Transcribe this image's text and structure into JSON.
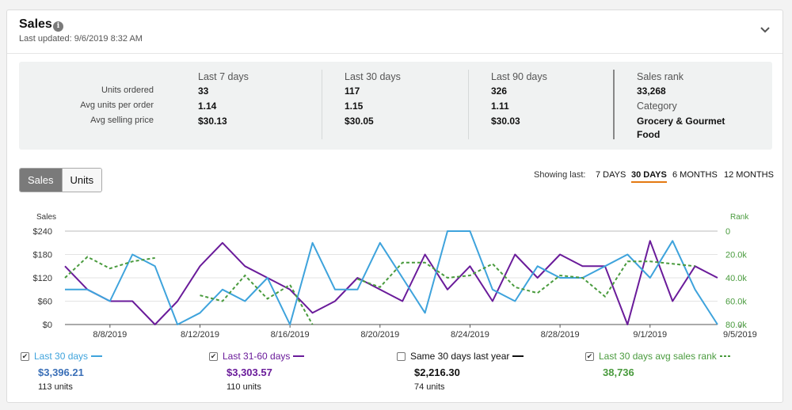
{
  "header": {
    "title": "Sales",
    "info_icon": "i",
    "updated": "Last updated: 9/6/2019 8:32 AM"
  },
  "metrics": {
    "row_labels": [
      "Units ordered",
      "Avg units per order",
      "Avg selling price"
    ],
    "periods": [
      {
        "title": "Last 7 days",
        "values": [
          "33",
          "1.14",
          "$30.13"
        ]
      },
      {
        "title": "Last 30 days",
        "values": [
          "117",
          "1.15",
          "$30.05"
        ]
      },
      {
        "title": "Last 90 days",
        "values": [
          "326",
          "1.11",
          "$30.03"
        ]
      }
    ],
    "rank_label": "Sales rank",
    "rank_value": "33,268",
    "category_label": "Category",
    "category_value": "Grocery & Gourmet Food"
  },
  "toggle": {
    "sales": "Sales",
    "units": "Units"
  },
  "showing": {
    "label": "Showing last:",
    "options": [
      "7 DAYS",
      "30 DAYS",
      "6 MONTHS",
      "12 MONTHS"
    ],
    "selected": "30 DAYS"
  },
  "colors": {
    "last30": "#3ea3dc",
    "last31_60": "#6a1b9a",
    "last_year": "#111111",
    "rank": "#4a9b3e",
    "accent": "#e47911"
  },
  "chart_data": {
    "type": "line",
    "left_axis": {
      "label": "Sales",
      "ticks": [
        "$0",
        "$60",
        "$120",
        "$180",
        "$240"
      ],
      "range": [
        0,
        240
      ]
    },
    "right_axis": {
      "label": "Rank",
      "ticks": [
        "0",
        "20.0k",
        "40.0k",
        "60.0k",
        "80.0k"
      ],
      "range": [
        0,
        80000
      ],
      "inverted": true
    },
    "x_labels": [
      "8/8/2019",
      "8/12/2019",
      "8/16/2019",
      "8/20/2019",
      "8/24/2019",
      "8/28/2019",
      "9/1/2019",
      "9/5/2019"
    ],
    "x_label_index": [
      2,
      6,
      10,
      14,
      18,
      22,
      26,
      30
    ],
    "series": [
      {
        "name": "Last 30 days",
        "axis": "left",
        "style": "solid",
        "values": [
          90,
          90,
          60,
          180,
          150,
          0,
          30,
          90,
          60,
          120,
          0,
          210,
          90,
          90,
          210,
          120,
          30,
          240,
          240,
          90,
          60,
          150,
          120,
          120,
          150,
          180,
          120,
          215,
          90,
          0
        ]
      },
      {
        "name": "Last 31-60 days",
        "axis": "left",
        "style": "solid",
        "values": [
          150,
          90,
          60,
          60,
          0,
          60,
          150,
          210,
          150,
          120,
          90,
          30,
          60,
          120,
          90,
          60,
          180,
          90,
          150,
          60,
          180,
          120,
          180,
          150,
          150,
          0,
          215,
          60,
          150,
          120
        ]
      },
      {
        "name": "Last 30 days avg sales rank",
        "axis": "right",
        "style": "dashed",
        "segments": [
          {
            "start": 0,
            "values": [
              40000,
              22000,
              32000,
              26000,
              23000
            ]
          },
          {
            "start": 6,
            "values": [
              55000,
              60000,
              38000,
              58000,
              46000,
              80000
            ]
          },
          {
            "start": 13,
            "values": [
              41000,
              48000,
              27000,
              27000,
              40000,
              38000,
              28000,
              48000,
              53000,
              38000,
              40000,
              56000,
              26000,
              26000,
              28000,
              30000
            ]
          }
        ]
      }
    ]
  },
  "legend": [
    {
      "label": "Last 30 days",
      "checked": true,
      "value": "$3,396.21",
      "units": "113 units",
      "color": "#3ea3dc",
      "marker": "solid"
    },
    {
      "label": "Last 31-60 days",
      "checked": true,
      "value": "$3,303.57",
      "units": "110 units",
      "color": "#6a1b9a",
      "marker": "solid"
    },
    {
      "label": "Same 30 days last year",
      "checked": false,
      "value": "$2,216.30",
      "units": "74 units",
      "color": "#111111",
      "marker": "solid"
    },
    {
      "label": "Last 30 days avg sales rank",
      "checked": true,
      "value": "38,736",
      "units": "",
      "color": "#4a9b3e",
      "marker": "dashed"
    }
  ]
}
